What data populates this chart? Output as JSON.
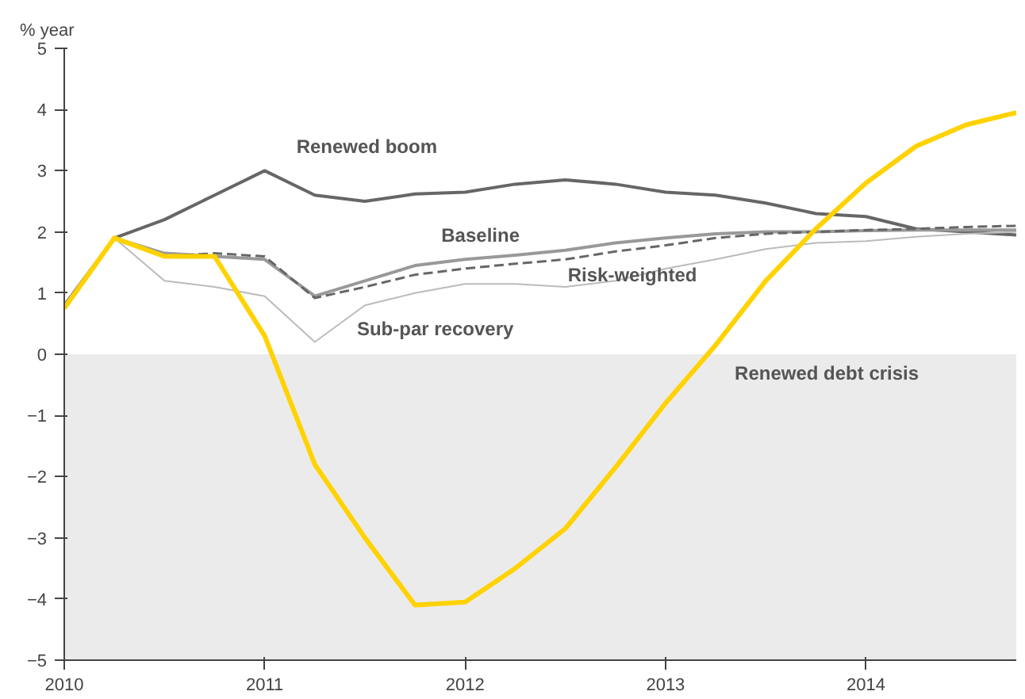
{
  "chart_data": {
    "type": "line",
    "ylabel": "% year",
    "x": [
      2010,
      2010.25,
      2010.5,
      2010.75,
      2011,
      2011.25,
      2011.5,
      2011.75,
      2012,
      2012.25,
      2012.5,
      2012.75,
      2013,
      2013.25,
      2013.5,
      2013.75,
      2014,
      2014.25,
      2014.5,
      2014.75
    ],
    "series": [
      {
        "name": "Renewed boom",
        "color": "#666666",
        "values": [
          0.8,
          1.9,
          2.2,
          2.6,
          3.0,
          2.6,
          2.5,
          2.62,
          2.65,
          2.78,
          2.85,
          2.78,
          2.65,
          2.6,
          2.47,
          2.3,
          2.25,
          2.05,
          2.0,
          1.95
        ]
      },
      {
        "name": "Baseline",
        "color": "#999999",
        "values": [
          0.8,
          1.9,
          1.65,
          1.6,
          1.55,
          0.95,
          1.2,
          1.45,
          1.55,
          1.62,
          1.7,
          1.82,
          1.9,
          1.97,
          2.0,
          2.0,
          2.02,
          2.03,
          2.03,
          2.03
        ]
      },
      {
        "name": "Risk-weighted",
        "color": "#666666",
        "line_style": "dashed",
        "values": [
          0.8,
          1.9,
          1.6,
          1.65,
          1.6,
          0.92,
          1.1,
          1.3,
          1.4,
          1.48,
          1.55,
          1.68,
          1.78,
          1.9,
          1.97,
          2.0,
          2.03,
          2.05,
          2.08,
          2.1
        ]
      },
      {
        "name": "Sub-par recovery",
        "color": "#bbbbbb",
        "values": [
          0.8,
          1.9,
          1.2,
          1.1,
          0.95,
          0.2,
          0.8,
          1.0,
          1.15,
          1.15,
          1.1,
          1.2,
          1.4,
          1.55,
          1.72,
          1.82,
          1.85,
          1.92,
          1.97,
          2.0
        ]
      },
      {
        "name": "Renewed debt crisis",
        "color": "#ffd200",
        "values": [
          0.75,
          1.9,
          1.6,
          1.6,
          0.3,
          -1.8,
          -3.0,
          -4.1,
          -4.05,
          -3.5,
          -2.85,
          -1.85,
          -0.8,
          0.15,
          1.2,
          2.05,
          2.8,
          3.4,
          3.75,
          3.95
        ]
      }
    ],
    "xlim": [
      2010,
      2014.75
    ],
    "xticks": [
      2010,
      2011,
      2012,
      2013,
      2014
    ],
    "ylim": [
      -5,
      5
    ],
    "yticks": [
      -5,
      -4,
      -3,
      -2,
      -1,
      0,
      1,
      2,
      3,
      4,
      5
    ],
    "bands": [
      {
        "axis": "y",
        "from": -5,
        "to": 0,
        "color": "#ebebec"
      }
    ],
    "line_style": "solid",
    "grid": false
  }
}
